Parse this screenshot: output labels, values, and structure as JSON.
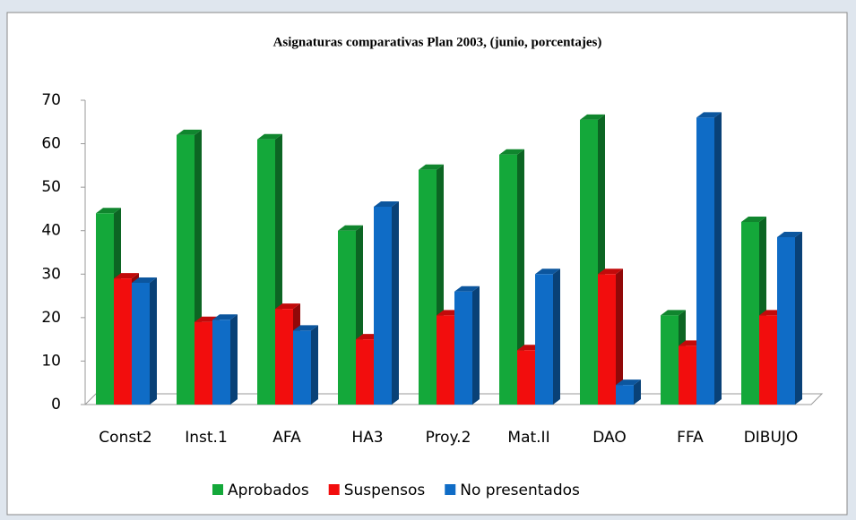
{
  "chart_data": {
    "type": "bar3d",
    "title": "Asignaturas comparativas Plan 2003, (junio, porcentajes)",
    "categories": [
      "Const2",
      "Inst.1",
      "AFA",
      "HA3",
      "Proy.2",
      "Mat.II",
      "DAO",
      "FFA",
      "DIBUJO"
    ],
    "series": [
      {
        "name": "Aprobados",
        "color": "#14a83a",
        "values": [
          44,
          62,
          61,
          40,
          54,
          57.5,
          65.5,
          20.5,
          42
        ]
      },
      {
        "name": "Suspensos",
        "color": "#f20d0d",
        "values": [
          29,
          19,
          22,
          15,
          20.5,
          12.5,
          30,
          13.5,
          20.5
        ]
      },
      {
        "name": "No presentados",
        "color": "#0f6cc6",
        "values": [
          28,
          19.5,
          17,
          45.5,
          26,
          30,
          4.5,
          66,
          38.5
        ]
      }
    ],
    "ylim": [
      0,
      70
    ],
    "yticks": [
      0,
      10,
      20,
      30,
      40,
      50,
      60,
      70
    ],
    "grid": false,
    "legend": "bottom"
  }
}
